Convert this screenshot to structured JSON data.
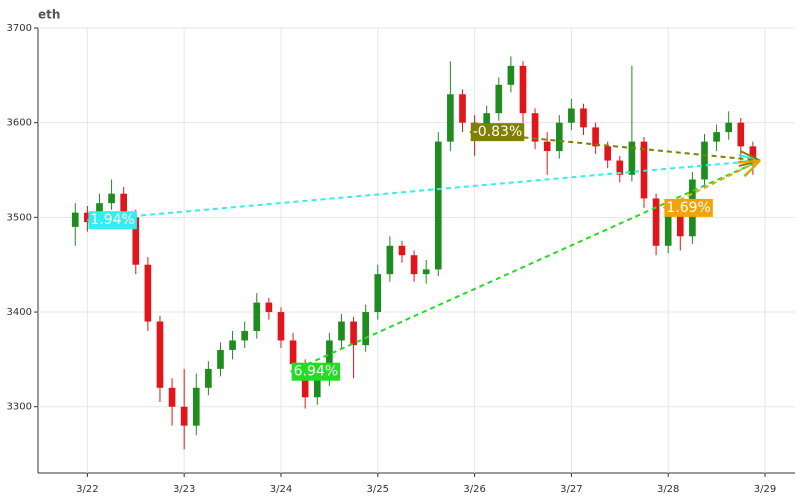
{
  "chart_data": {
    "type": "candlestick",
    "title": "eth",
    "x": [
      21.875,
      22,
      22.125,
      22.25,
      22.375,
      22.5,
      22.625,
      22.75,
      22.875,
      23,
      23.125,
      23.25,
      23.375,
      23.5,
      23.625,
      23.75,
      23.875,
      24,
      24.125,
      24.25,
      24.375,
      24.5,
      24.625,
      24.75,
      24.875,
      25,
      25.125,
      25.25,
      25.375,
      25.5,
      25.625,
      25.75,
      25.875,
      26,
      26.125,
      26.25,
      26.375,
      26.5,
      26.625,
      26.75,
      26.875,
      27,
      27.125,
      27.25,
      27.375,
      27.5,
      27.625,
      27.75,
      27.875,
      28,
      28.125,
      28.25,
      28.375,
      28.5,
      28.625,
      28.75,
      28.875
    ],
    "open": [
      3490,
      3505,
      3495,
      3515,
      3525,
      3500,
      3450,
      3390,
      3320,
      3300,
      3280,
      3320,
      3340,
      3360,
      3370,
      3380,
      3410,
      3400,
      3370,
      3345,
      3310,
      3330,
      3370,
      3390,
      3365,
      3400,
      3440,
      3470,
      3460,
      3440,
      3445,
      3580,
      3630,
      3600,
      3595,
      3610,
      3640,
      3660,
      3610,
      3580,
      3570,
      3600,
      3615,
      3595,
      3575,
      3560,
      3545,
      3580,
      3520,
      3470,
      3505,
      3480,
      3540,
      3580,
      3590,
      3600,
      3575
    ],
    "high": [
      3515,
      3512,
      3525,
      3540,
      3532,
      3508,
      3458,
      3396,
      3330,
      3340,
      3335,
      3348,
      3368,
      3380,
      3390,
      3420,
      3415,
      3405,
      3378,
      3350,
      3338,
      3378,
      3398,
      3395,
      3408,
      3450,
      3480,
      3475,
      3465,
      3455,
      3590,
      3665,
      3635,
      3608,
      3618,
      3648,
      3670,
      3665,
      3615,
      3590,
      3608,
      3625,
      3620,
      3600,
      3580,
      3565,
      3660,
      3585,
      3525,
      3515,
      3510,
      3548,
      3588,
      3598,
      3612,
      3605,
      3580
    ],
    "low": [
      3470,
      3485,
      3488,
      3508,
      3492,
      3440,
      3380,
      3305,
      3280,
      3255,
      3270,
      3312,
      3332,
      3350,
      3362,
      3372,
      3392,
      3362,
      3338,
      3298,
      3302,
      3322,
      3362,
      3330,
      3358,
      3392,
      3432,
      3452,
      3432,
      3430,
      3438,
      3570,
      3590,
      3565,
      3588,
      3602,
      3632,
      3600,
      3572,
      3545,
      3562,
      3592,
      3587,
      3567,
      3552,
      3537,
      3538,
      3510,
      3460,
      3462,
      3465,
      3472,
      3532,
      3570,
      3582,
      3560,
      3545
    ],
    "close": [
      3505,
      3495,
      3515,
      3525,
      3500,
      3450,
      3390,
      3320,
      3300,
      3280,
      3320,
      3340,
      3360,
      3370,
      3380,
      3410,
      3400,
      3370,
      3345,
      3310,
      3330,
      3370,
      3390,
      3365,
      3400,
      3440,
      3470,
      3460,
      3440,
      3445,
      3580,
      3630,
      3600,
      3595,
      3610,
      3640,
      3660,
      3610,
      3580,
      3570,
      3600,
      3615,
      3595,
      3575,
      3560,
      3545,
      3580,
      3520,
      3470,
      3505,
      3480,
      3540,
      3580,
      3590,
      3600,
      3575,
      3560
    ],
    "up_color": "#1e8c1e",
    "down_color": "#e0161b",
    "xlim": [
      21.49,
      29.31
    ],
    "xticks": [
      {
        "value": 22,
        "label": "3/22"
      },
      {
        "value": 23,
        "label": "3/23"
      },
      {
        "value": 24,
        "label": "3/24"
      },
      {
        "value": 25,
        "label": "3/25"
      },
      {
        "value": 26,
        "label": "3/26"
      },
      {
        "value": 27,
        "label": "3/27"
      },
      {
        "value": 28,
        "label": "3/28"
      },
      {
        "value": 29,
        "label": "3/29"
      }
    ],
    "ylim": [
      3230,
      3700
    ],
    "yticks": [
      3300,
      3400,
      3500,
      3600,
      3700
    ],
    "grid": true,
    "annotations": [
      {
        "text": "1.94%",
        "x": 22.0,
        "y": 3497,
        "to_x": 28.95,
        "to_y": 3560,
        "color": "#33eeee"
      },
      {
        "text": "6.94%",
        "x": 24.1,
        "y": 3337,
        "to_x": 28.95,
        "to_y": 3560,
        "color": "#22dd22"
      },
      {
        "text": "-0.83%",
        "x": 25.95,
        "y": 3590,
        "to_x": 28.95,
        "to_y": 3560,
        "color": "#808000"
      },
      {
        "text": "1.69%",
        "x": 27.95,
        "y": 3510,
        "to_x": 28.95,
        "to_y": 3560,
        "color": "#f0a30a"
      }
    ]
  }
}
